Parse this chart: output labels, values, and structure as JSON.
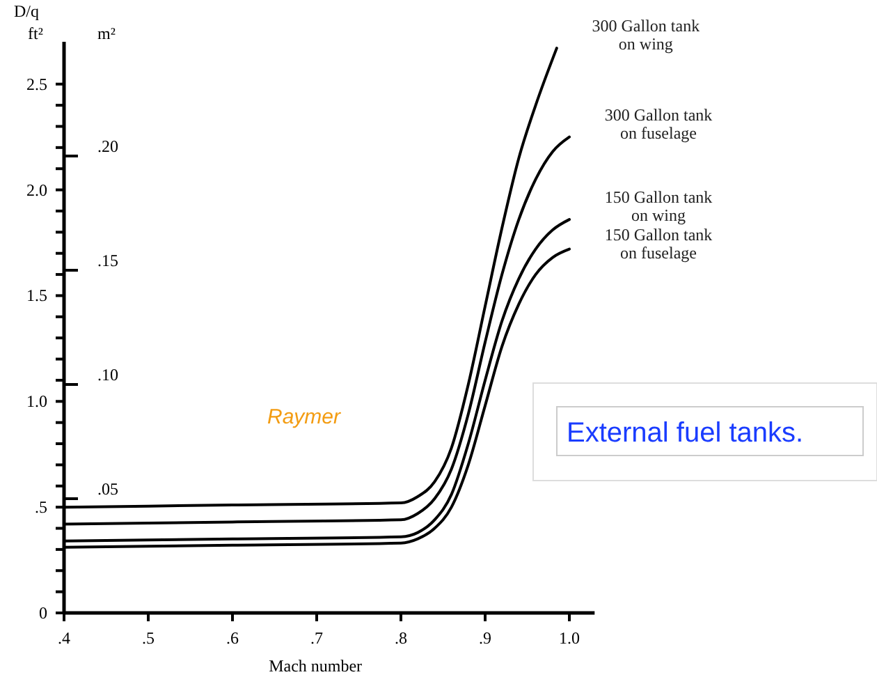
{
  "chart_data": {
    "type": "line",
    "ylabel": "D/q\nft²",
    "y2label": "m²",
    "xlabel": "Mach number",
    "xlim": [
      0.4,
      1.03
    ],
    "xticks": [
      {
        "value": 0.4,
        "label": ".4"
      },
      {
        "value": 0.5,
        "label": ".5"
      },
      {
        "value": 0.6,
        "label": ".6"
      },
      {
        "value": 0.7,
        "label": ".7"
      },
      {
        "value": 0.8,
        "label": ".8"
      },
      {
        "value": 0.9,
        "label": ".9"
      },
      {
        "value": 1.0,
        "label": "1.0"
      }
    ],
    "ylim": [
      0,
      2.7
    ],
    "yticks": [
      0,
      {
        "value": 0.1,
        "label": null
      },
      {
        "value": 0.2,
        "label": null
      },
      {
        "value": 0.3,
        "label": null
      },
      {
        "value": 0.4,
        "label": null
      },
      {
        "value": 0.5,
        "label": ".5"
      },
      {
        "value": 0.6,
        "label": null
      },
      {
        "value": 0.7,
        "label": null
      },
      {
        "value": 0.8,
        "label": null
      },
      {
        "value": 0.9,
        "label": null
      },
      {
        "value": 1.0,
        "label": "1.0"
      },
      {
        "value": 1.1,
        "label": null
      },
      {
        "value": 1.2,
        "label": null
      },
      {
        "value": 1.3,
        "label": null
      },
      {
        "value": 1.4,
        "label": null
      },
      {
        "value": 1.5,
        "label": "1.5"
      },
      {
        "value": 1.6,
        "label": null
      },
      {
        "value": 1.7,
        "label": null
      },
      {
        "value": 1.8,
        "label": null
      },
      {
        "value": 1.9,
        "label": null
      },
      {
        "value": 2.0,
        "label": "2.0"
      },
      {
        "value": 2.1,
        "label": null
      },
      {
        "value": 2.2,
        "label": null
      },
      {
        "value": 2.3,
        "label": null
      },
      {
        "value": 2.4,
        "label": null
      },
      {
        "value": 2.5,
        "label": "2.5"
      }
    ],
    "y2lim": [
      0,
      0.25
    ],
    "y2ticks": [
      {
        "value": 0.05,
        "label": ".05"
      },
      {
        "value": 0.1,
        "label": ".10"
      },
      {
        "value": 0.15,
        "label": ".15"
      },
      {
        "value": 0.2,
        "label": ".20"
      }
    ],
    "series": [
      {
        "name": "300 Gallon tank\non wing",
        "color": "#000000",
        "x": [
          0.4,
          0.6,
          0.8,
          0.82,
          0.84,
          0.86,
          0.88,
          0.9,
          0.92,
          0.94,
          0.96,
          0.985
        ],
        "values": [
          0.5,
          0.51,
          0.52,
          0.55,
          0.62,
          0.78,
          1.08,
          1.45,
          1.82,
          2.15,
          2.4,
          2.67
        ]
      },
      {
        "name": "300 Gallon tank\non fuselage",
        "color": "#000000",
        "x": [
          0.4,
          0.6,
          0.8,
          0.82,
          0.84,
          0.86,
          0.88,
          0.9,
          0.92,
          0.94,
          0.96,
          0.98,
          1.0
        ],
        "values": [
          0.42,
          0.43,
          0.44,
          0.47,
          0.54,
          0.68,
          0.94,
          1.28,
          1.6,
          1.86,
          2.05,
          2.18,
          2.25
        ]
      },
      {
        "name": "150 Gallon tank\non wing",
        "color": "#000000",
        "x": [
          0.4,
          0.6,
          0.8,
          0.82,
          0.84,
          0.86,
          0.88,
          0.9,
          0.92,
          0.94,
          0.96,
          0.98,
          1.0
        ],
        "values": [
          0.34,
          0.35,
          0.36,
          0.38,
          0.44,
          0.56,
          0.8,
          1.1,
          1.38,
          1.58,
          1.72,
          1.81,
          1.86
        ]
      },
      {
        "name": "150 Gallon tank\non fuselage",
        "color": "#000000",
        "x": [
          0.4,
          0.6,
          0.8,
          0.82,
          0.84,
          0.86,
          0.88,
          0.9,
          0.92,
          0.94,
          0.96,
          0.98,
          1.0
        ],
        "values": [
          0.31,
          0.32,
          0.33,
          0.35,
          0.4,
          0.5,
          0.7,
          0.98,
          1.26,
          1.46,
          1.6,
          1.68,
          1.72
        ]
      }
    ],
    "annotations": [
      "Raymer",
      "External fuel tanks."
    ]
  }
}
